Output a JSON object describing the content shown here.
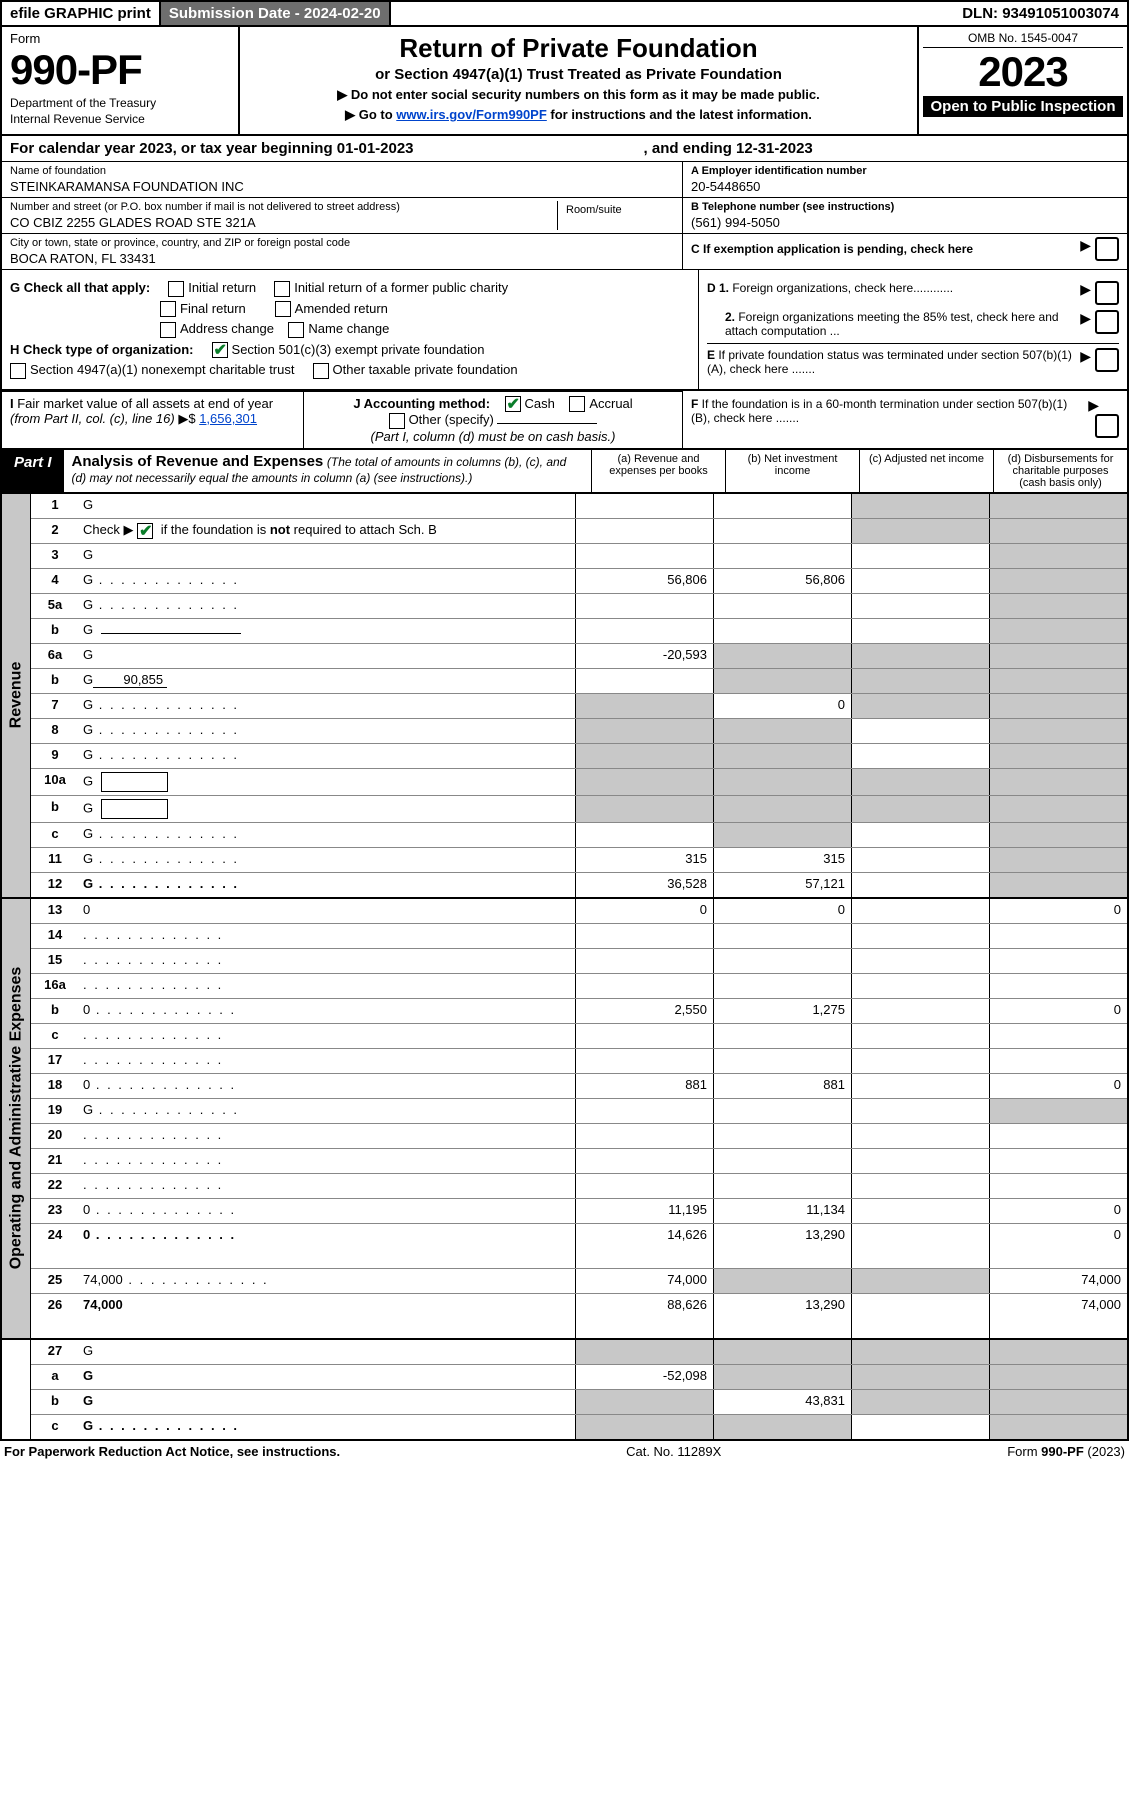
{
  "top_bar": {
    "efile": "efile GRAPHIC print",
    "submission_label": "Submission Date - 2024-02-20",
    "dln": "DLN: 93491051003074"
  },
  "header": {
    "form": "Form",
    "form_number": "990-PF",
    "dept": "Department of the Treasury",
    "irs": "Internal Revenue Service",
    "title": "Return of Private Foundation",
    "subtitle": "or Section 4947(a)(1) Trust Treated as Private Foundation",
    "instr1": "▶ Do not enter social security numbers on this form as it may be made public.",
    "instr2_pre": "▶ Go to ",
    "instr2_link": "www.irs.gov/Form990PF",
    "instr2_post": " for instructions and the latest information.",
    "omb": "OMB No. 1545-0047",
    "year": "2023",
    "inspection": "Open to Public Inspection"
  },
  "calendar": {
    "label": "For calendar year 2023, or tax year beginning 01-01-2023",
    "ending": ", and ending 12-31-2023"
  },
  "foundation": {
    "name_label": "Name of foundation",
    "name": "STEINKARAMANSA FOUNDATION INC",
    "addr_label": "Number and street (or P.O. box number if mail is not delivered to street address)",
    "addr": "CO CBIZ 2255 GLADES ROAD STE 321A",
    "room_label": "Room/suite",
    "city_label": "City or town, state or province, country, and ZIP or foreign postal code",
    "city": "BOCA RATON, FL  33431",
    "ein_label": "A Employer identification number",
    "ein": "20-5448650",
    "phone_label": "B Telephone number (see instructions)",
    "phone": "(561) 994-5050",
    "c_label": "C If exemption application is pending, check here"
  },
  "checks": {
    "g_label": "G Check all that apply:",
    "g_opts": [
      "Initial return",
      "Initial return of a former public charity",
      "Final return",
      "Amended return",
      "Address change",
      "Name change"
    ],
    "h_label": "H Check type of organization:",
    "h_501c3": "Section 501(c)(3) exempt private foundation",
    "h_4947": "Section 4947(a)(1) nonexempt charitable trust",
    "h_other": "Other taxable private foundation",
    "i_label": "I Fair market value of all assets at end of year (from Part II, col. (c), line 16)",
    "i_value": "1,656,301",
    "j_label": "J Accounting method:",
    "j_cash": "Cash",
    "j_accrual": "Accrual",
    "j_other": "Other (specify)",
    "j_note": "(Part I, column (d) must be on cash basis.)",
    "d1": "D 1. Foreign organizations, check here............",
    "d2": "2. Foreign organizations meeting the 85% test, check here and attach computation ...",
    "e": "E If private foundation status was terminated under section 507(b)(1)(A), check here .......",
    "f": "F If the foundation is in a 60-month termination under section 507(b)(1)(B), check here .......",
    "arrow": "▶",
    "dollar": "▶$"
  },
  "part1": {
    "label": "Part I",
    "title": "Analysis of Revenue and Expenses",
    "note": "(The total of amounts in columns (b), (c), and (d) may not necessarily equal the amounts in column (a) (see instructions).)",
    "col_a": "(a) Revenue and expenses per books",
    "col_b": "(b) Net investment income",
    "col_c": "(c) Adjusted net income",
    "col_d": "(d) Disbursements for charitable purposes (cash basis only)"
  },
  "sides": {
    "revenue": "Revenue",
    "expenses": "Operating and Administrative Expenses"
  },
  "rows": [
    {
      "n": "1",
      "d": "G",
      "a": "",
      "b": "",
      "c": "G",
      "dots": false
    },
    {
      "n": "2",
      "d": "G",
      "a": "",
      "b": "",
      "c": "G",
      "dots": false,
      "html": "Check ▶ <span class='checkbox checked'></span> if the foundation is <b>not</b> required to attach Sch. B"
    },
    {
      "n": "3",
      "d": "G",
      "a": "",
      "b": "",
      "c": "",
      "dots": false
    },
    {
      "n": "4",
      "d": "G",
      "a": "56,806",
      "b": "56,806",
      "c": "",
      "dots": true
    },
    {
      "n": "5a",
      "d": "G",
      "a": "",
      "b": "",
      "c": "",
      "dots": true
    },
    {
      "n": "b",
      "d": "G",
      "a": "",
      "b": "",
      "c": "",
      "inline": true
    },
    {
      "n": "6a",
      "d": "G",
      "a": "-20,593",
      "b": "G",
      "c": "G",
      "dots": false
    },
    {
      "n": "b",
      "d": "G",
      "a": "",
      "b": "G",
      "c": "G",
      "inline_val": "90,855"
    },
    {
      "n": "7",
      "d": "G",
      "a": "G",
      "b": "0",
      "c": "G",
      "dots": true
    },
    {
      "n": "8",
      "d": "G",
      "a": "G",
      "b": "G",
      "c": "",
      "dots": true
    },
    {
      "n": "9",
      "d": "G",
      "a": "G",
      "b": "G",
      "c": "",
      "dots": true
    },
    {
      "n": "10a",
      "d": "G",
      "a": "G",
      "b": "G",
      "c": "G",
      "box": true
    },
    {
      "n": "b",
      "d": "G",
      "a": "G",
      "b": "G",
      "c": "G",
      "box": true,
      "short": true
    },
    {
      "n": "c",
      "d": "G",
      "a": "",
      "b": "G",
      "c": "",
      "dots": true
    },
    {
      "n": "11",
      "d": "G",
      "a": "315",
      "b": "315",
      "c": "",
      "dots": true
    },
    {
      "n": "12",
      "d": "G",
      "a": "36,528",
      "b": "57,121",
      "c": "",
      "dots": true,
      "bold": true
    }
  ],
  "exp_rows": [
    {
      "n": "13",
      "d": "0",
      "a": "0",
      "b": "0",
      "c": ""
    },
    {
      "n": "14",
      "d": "",
      "a": "",
      "b": "",
      "c": "",
      "dots": true
    },
    {
      "n": "15",
      "d": "",
      "a": "",
      "b": "",
      "c": "",
      "dots": true
    },
    {
      "n": "16a",
      "d": "",
      "a": "",
      "b": "",
      "c": "",
      "dots": true
    },
    {
      "n": "b",
      "d": "0",
      "a": "2,550",
      "b": "1,275",
      "c": "",
      "dots": true
    },
    {
      "n": "c",
      "d": "",
      "a": "",
      "b": "",
      "c": "",
      "dots": true
    },
    {
      "n": "17",
      "d": "",
      "a": "",
      "b": "",
      "c": "",
      "dots": true
    },
    {
      "n": "18",
      "d": "0",
      "a": "881",
      "b": "881",
      "c": "",
      "dots": true
    },
    {
      "n": "19",
      "d": "G",
      "a": "",
      "b": "",
      "c": "",
      "dots": true
    },
    {
      "n": "20",
      "d": "",
      "a": "",
      "b": "",
      "c": "",
      "dots": true
    },
    {
      "n": "21",
      "d": "",
      "a": "",
      "b": "",
      "c": "",
      "dots": true
    },
    {
      "n": "22",
      "d": "",
      "a": "",
      "b": "",
      "c": "",
      "dots": true
    },
    {
      "n": "23",
      "d": "0",
      "a": "11,195",
      "b": "11,134",
      "c": "",
      "dots": true
    },
    {
      "n": "24",
      "d": "0",
      "a": "14,626",
      "b": "13,290",
      "c": "",
      "bold": true,
      "dots": true,
      "tall": true
    },
    {
      "n": "25",
      "d": "74,000",
      "a": "74,000",
      "b": "G",
      "c": "G",
      "dots": true
    },
    {
      "n": "26",
      "d": "74,000",
      "a": "88,626",
      "b": "13,290",
      "c": "",
      "bold": true,
      "tall": true
    }
  ],
  "final_rows": [
    {
      "n": "27",
      "d": "G",
      "a": "G",
      "b": "G",
      "c": "G"
    },
    {
      "n": "a",
      "d": "G",
      "a": "-52,098",
      "b": "G",
      "c": "G",
      "bold": true
    },
    {
      "n": "b",
      "d": "G",
      "a": "G",
      "b": "43,831",
      "c": "G",
      "bold": true
    },
    {
      "n": "c",
      "d": "G",
      "a": "G",
      "b": "G",
      "c": "",
      "bold": true,
      "dots": true
    }
  ],
  "footer": {
    "left": "For Paperwork Reduction Act Notice, see instructions.",
    "mid": "Cat. No. 11289X",
    "right": "Form 990-PF (2023)"
  }
}
